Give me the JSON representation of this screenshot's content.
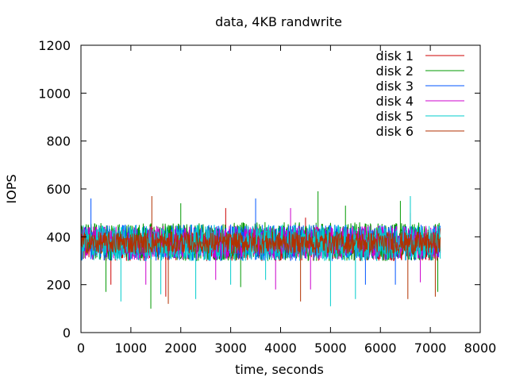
{
  "chart_data": {
    "type": "line",
    "title": "data, 4KB randwrite",
    "xlabel": "time, seconds",
    "ylabel": "IOPS",
    "xlim": [
      0,
      8000
    ],
    "ylim": [
      0,
      1200
    ],
    "xticks": [
      0,
      1000,
      2000,
      3000,
      4000,
      5000,
      6000,
      7000,
      8000
    ],
    "yticks": [
      0,
      200,
      400,
      600,
      800,
      1000,
      1200
    ],
    "grid": false,
    "legend": "top-right",
    "x_range": [
      0,
      7200
    ],
    "series": [
      {
        "name": "disk 1",
        "color": "#cc0000",
        "band": [
          300,
          440
        ],
        "spikes": [
          [
            600,
            200
          ],
          [
            1700,
            150
          ],
          [
            2900,
            520
          ],
          [
            4500,
            480
          ],
          [
            6600,
            500
          ]
        ]
      },
      {
        "name": "disk 2",
        "color": "#009900",
        "band": [
          300,
          460
        ],
        "spikes": [
          [
            500,
            170
          ],
          [
            1400,
            100
          ],
          [
            2000,
            540
          ],
          [
            3200,
            190
          ],
          [
            4750,
            590
          ],
          [
            5300,
            530
          ],
          [
            6400,
            550
          ],
          [
            7150,
            170
          ]
        ]
      },
      {
        "name": "disk 3",
        "color": "#0055ff",
        "band": [
          300,
          450
        ],
        "spikes": [
          [
            200,
            560
          ],
          [
            3500,
            560
          ],
          [
            5700,
            200
          ],
          [
            6300,
            200
          ]
        ]
      },
      {
        "name": "disk 4",
        "color": "#cc00cc",
        "band": [
          305,
          445
        ],
        "spikes": [
          [
            1300,
            200
          ],
          [
            2700,
            220
          ],
          [
            3900,
            180
          ],
          [
            4200,
            520
          ],
          [
            4600,
            180
          ],
          [
            6800,
            210
          ]
        ]
      },
      {
        "name": "disk 5",
        "color": "#00cccc",
        "band": [
          300,
          450
        ],
        "spikes": [
          [
            800,
            130
          ],
          [
            1600,
            160
          ],
          [
            2300,
            140
          ],
          [
            3000,
            200
          ],
          [
            3700,
            220
          ],
          [
            5000,
            110
          ],
          [
            5500,
            140
          ],
          [
            6600,
            570
          ]
        ]
      },
      {
        "name": "disk 6",
        "color": "#b23200",
        "band": [
          330,
          420
        ],
        "spikes": [
          [
            1420,
            570
          ],
          [
            1750,
            120
          ],
          [
            4400,
            130
          ],
          [
            6550,
            140
          ],
          [
            7100,
            150
          ]
        ]
      }
    ]
  }
}
